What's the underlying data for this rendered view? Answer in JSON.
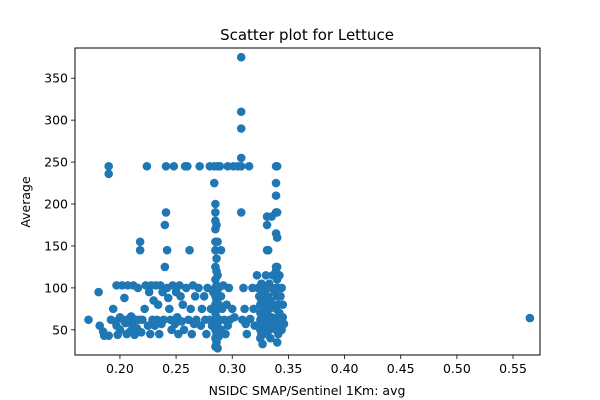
{
  "chart_data": {
    "type": "scatter",
    "title": "Scatter plot for Lettuce",
    "xlabel": "NSIDC SMAP/Sentinel 1Km: avg",
    "ylabel": "Average",
    "xlim": [
      0.16,
      0.574
    ],
    "ylim": [
      20,
      386
    ],
    "xticks": [
      0.2,
      0.25,
      0.3,
      0.35,
      0.4,
      0.45,
      0.5,
      0.55
    ],
    "xtick_labels": [
      "0.20",
      "0.25",
      "0.30",
      "0.35",
      "0.40",
      "0.45",
      "0.50",
      "0.55"
    ],
    "yticks": [
      50,
      100,
      150,
      200,
      250,
      300,
      350
    ],
    "ytick_labels": [
      "50",
      "100",
      "150",
      "200",
      "250",
      "300",
      "350"
    ],
    "grid": false,
    "legend": "none",
    "color": "#1f77b4",
    "points": [
      [
        0.172,
        62
      ],
      [
        0.181,
        95
      ],
      [
        0.182,
        55
      ],
      [
        0.185,
        48
      ],
      [
        0.186,
        43
      ],
      [
        0.19,
        245
      ],
      [
        0.19,
        236
      ],
      [
        0.19,
        43
      ],
      [
        0.192,
        62
      ],
      [
        0.194,
        75
      ],
      [
        0.196,
        60
      ],
      [
        0.197,
        103
      ],
      [
        0.197,
        55
      ],
      [
        0.198,
        44
      ],
      [
        0.2,
        65
      ],
      [
        0.2,
        50
      ],
      [
        0.202,
        103
      ],
      [
        0.203,
        62
      ],
      [
        0.204,
        88
      ],
      [
        0.205,
        58
      ],
      [
        0.206,
        45
      ],
      [
        0.207,
        103
      ],
      [
        0.208,
        63
      ],
      [
        0.209,
        48
      ],
      [
        0.21,
        66
      ],
      [
        0.211,
        55
      ],
      [
        0.212,
        103
      ],
      [
        0.213,
        44
      ],
      [
        0.214,
        62
      ],
      [
        0.215,
        52
      ],
      [
        0.216,
        100
      ],
      [
        0.217,
        62
      ],
      [
        0.218,
        155
      ],
      [
        0.218,
        145
      ],
      [
        0.219,
        47
      ],
      [
        0.22,
        62
      ],
      [
        0.222,
        75
      ],
      [
        0.223,
        103
      ],
      [
        0.224,
        245
      ],
      [
        0.225,
        55
      ],
      [
        0.226,
        95
      ],
      [
        0.227,
        45
      ],
      [
        0.228,
        103
      ],
      [
        0.229,
        62
      ],
      [
        0.23,
        85
      ],
      [
        0.231,
        55
      ],
      [
        0.232,
        103
      ],
      [
        0.233,
        62
      ],
      [
        0.234,
        80
      ],
      [
        0.235,
        45
      ],
      [
        0.236,
        103
      ],
      [
        0.237,
        57
      ],
      [
        0.238,
        95
      ],
      [
        0.239,
        62
      ],
      [
        0.24,
        125
      ],
      [
        0.24,
        175
      ],
      [
        0.241,
        190
      ],
      [
        0.241,
        245
      ],
      [
        0.242,
        145
      ],
      [
        0.242,
        100
      ],
      [
        0.243,
        88
      ],
      [
        0.244,
        75
      ],
      [
        0.245,
        62
      ],
      [
        0.246,
        50
      ],
      [
        0.247,
        103
      ],
      [
        0.248,
        245
      ],
      [
        0.249,
        57
      ],
      [
        0.25,
        95
      ],
      [
        0.251,
        65
      ],
      [
        0.252,
        45
      ],
      [
        0.253,
        103
      ],
      [
        0.254,
        90
      ],
      [
        0.255,
        60
      ],
      [
        0.256,
        80
      ],
      [
        0.257,
        50
      ],
      [
        0.258,
        245
      ],
      [
        0.259,
        100
      ],
      [
        0.26,
        245
      ],
      [
        0.261,
        62
      ],
      [
        0.262,
        145
      ],
      [
        0.263,
        75
      ],
      [
        0.264,
        45
      ],
      [
        0.265,
        103
      ],
      [
        0.266,
        57
      ],
      [
        0.267,
        90
      ],
      [
        0.268,
        62
      ],
      [
        0.27,
        100
      ],
      [
        0.271,
        245
      ],
      [
        0.272,
        55
      ],
      [
        0.273,
        75
      ],
      [
        0.275,
        90
      ],
      [
        0.276,
        62
      ],
      [
        0.277,
        45
      ],
      [
        0.278,
        100
      ],
      [
        0.28,
        245
      ],
      [
        0.28,
        62
      ],
      [
        0.281,
        75
      ],
      [
        0.282,
        55
      ],
      [
        0.283,
        95
      ],
      [
        0.284,
        245
      ],
      [
        0.284,
        225
      ],
      [
        0.285,
        200
      ],
      [
        0.285,
        190
      ],
      [
        0.285,
        180
      ],
      [
        0.285,
        170
      ],
      [
        0.285,
        155
      ],
      [
        0.285,
        145
      ],
      [
        0.285,
        125
      ],
      [
        0.285,
        110
      ],
      [
        0.285,
        100
      ],
      [
        0.285,
        90
      ],
      [
        0.285,
        80
      ],
      [
        0.285,
        70
      ],
      [
        0.285,
        60
      ],
      [
        0.285,
        50
      ],
      [
        0.285,
        40
      ],
      [
        0.285,
        30
      ],
      [
        0.286,
        175
      ],
      [
        0.286,
        135
      ],
      [
        0.286,
        120
      ],
      [
        0.286,
        103
      ],
      [
        0.286,
        95
      ],
      [
        0.286,
        85
      ],
      [
        0.286,
        75
      ],
      [
        0.286,
        65
      ],
      [
        0.286,
        55
      ],
      [
        0.286,
        45
      ],
      [
        0.286,
        35
      ],
      [
        0.287,
        245
      ],
      [
        0.287,
        155
      ],
      [
        0.287,
        115
      ],
      [
        0.287,
        58
      ],
      [
        0.287,
        28
      ],
      [
        0.288,
        100
      ],
      [
        0.288,
        80
      ],
      [
        0.288,
        42
      ],
      [
        0.289,
        245
      ],
      [
        0.289,
        62
      ],
      [
        0.29,
        145
      ],
      [
        0.29,
        90
      ],
      [
        0.29,
        50
      ],
      [
        0.291,
        75
      ],
      [
        0.292,
        103
      ],
      [
        0.293,
        62
      ],
      [
        0.294,
        45
      ],
      [
        0.295,
        80
      ],
      [
        0.296,
        245
      ],
      [
        0.296,
        55
      ],
      [
        0.297,
        100
      ],
      [
        0.298,
        62
      ],
      [
        0.3,
        75
      ],
      [
        0.301,
        245
      ],
      [
        0.302,
        65
      ],
      [
        0.305,
        245
      ],
      [
        0.308,
        375
      ],
      [
        0.308,
        310
      ],
      [
        0.308,
        290
      ],
      [
        0.308,
        255
      ],
      [
        0.308,
        245
      ],
      [
        0.308,
        190
      ],
      [
        0.309,
        62
      ],
      [
        0.31,
        100
      ],
      [
        0.311,
        75
      ],
      [
        0.312,
        57
      ],
      [
        0.313,
        45
      ],
      [
        0.315,
        245
      ],
      [
        0.316,
        63
      ],
      [
        0.318,
        100
      ],
      [
        0.319,
        75
      ],
      [
        0.32,
        55
      ],
      [
        0.322,
        115
      ],
      [
        0.323,
        100
      ],
      [
        0.324,
        90
      ],
      [
        0.325,
        80
      ],
      [
        0.325,
        70
      ],
      [
        0.325,
        62
      ],
      [
        0.325,
        50
      ],
      [
        0.325,
        40
      ],
      [
        0.326,
        105
      ],
      [
        0.326,
        85
      ],
      [
        0.326,
        60
      ],
      [
        0.326,
        45
      ],
      [
        0.327,
        95
      ],
      [
        0.327,
        75
      ],
      [
        0.327,
        55
      ],
      [
        0.327,
        33
      ],
      [
        0.328,
        100
      ],
      [
        0.328,
        65
      ],
      [
        0.329,
        88
      ],
      [
        0.329,
        50
      ],
      [
        0.33,
        115
      ],
      [
        0.33,
        80
      ],
      [
        0.33,
        58
      ],
      [
        0.331,
        185
      ],
      [
        0.331,
        175
      ],
      [
        0.331,
        145
      ],
      [
        0.331,
        100
      ],
      [
        0.331,
        70
      ],
      [
        0.331,
        45
      ],
      [
        0.332,
        145
      ],
      [
        0.332,
        90
      ],
      [
        0.332,
        62
      ],
      [
        0.333,
        105
      ],
      [
        0.333,
        75
      ],
      [
        0.333,
        50
      ],
      [
        0.334,
        85
      ],
      [
        0.334,
        40
      ],
      [
        0.335,
        185
      ],
      [
        0.335,
        100
      ],
      [
        0.335,
        65
      ],
      [
        0.336,
        115
      ],
      [
        0.336,
        55
      ],
      [
        0.337,
        80
      ],
      [
        0.338,
        95
      ],
      [
        0.338,
        60
      ],
      [
        0.339,
        245
      ],
      [
        0.339,
        225
      ],
      [
        0.339,
        210
      ],
      [
        0.339,
        190
      ],
      [
        0.339,
        165
      ],
      [
        0.339,
        125
      ],
      [
        0.339,
        120
      ],
      [
        0.339,
        100
      ],
      [
        0.339,
        75
      ],
      [
        0.339,
        50
      ],
      [
        0.34,
        245
      ],
      [
        0.34,
        190
      ],
      [
        0.34,
        160
      ],
      [
        0.34,
        125
      ],
      [
        0.34,
        110
      ],
      [
        0.34,
        90
      ],
      [
        0.34,
        65
      ],
      [
        0.34,
        35
      ],
      [
        0.341,
        100
      ],
      [
        0.341,
        80
      ],
      [
        0.341,
        55
      ],
      [
        0.341,
        45
      ],
      [
        0.342,
        115
      ],
      [
        0.342,
        70
      ],
      [
        0.343,
        90
      ],
      [
        0.343,
        60
      ],
      [
        0.344,
        100
      ],
      [
        0.344,
        50
      ],
      [
        0.345,
        80
      ],
      [
        0.345,
        65
      ],
      [
        0.346,
        57
      ],
      [
        0.565,
        64
      ]
    ]
  }
}
